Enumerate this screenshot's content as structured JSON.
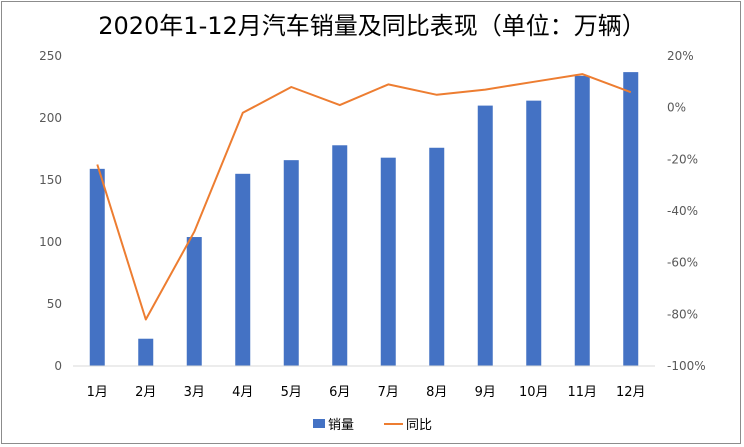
{
  "chart_data": {
    "type": "bar+line",
    "title": "2020年1-12月汽车销量及同比表现（单位：万辆）",
    "categories": [
      "1月",
      "2月",
      "3月",
      "4月",
      "5月",
      "6月",
      "7月",
      "8月",
      "9月",
      "10月",
      "11月",
      "12月"
    ],
    "series": [
      {
        "name": "销量",
        "type": "bar",
        "axis": "left",
        "color": "#4472C4",
        "values": [
          159,
          22,
          104,
          155,
          166,
          178,
          168,
          176,
          210,
          214,
          234,
          237
        ]
      },
      {
        "name": "同比",
        "type": "line",
        "axis": "right",
        "color": "#ED7D31",
        "values": [
          -22,
          -82,
          -48,
          -2,
          8,
          1,
          9,
          5,
          7,
          10,
          13,
          6
        ]
      }
    ],
    "y_left": {
      "ylim": [
        0,
        250
      ],
      "ticks": [
        "0",
        "50",
        "100",
        "150",
        "200",
        "250"
      ]
    },
    "y_right": {
      "ylim": [
        -100,
        20
      ],
      "ticks": [
        "-100%",
        "-80%",
        "-60%",
        "-40%",
        "-20%",
        "0%",
        "20%"
      ]
    },
    "grid": false,
    "legend": "bottom"
  }
}
